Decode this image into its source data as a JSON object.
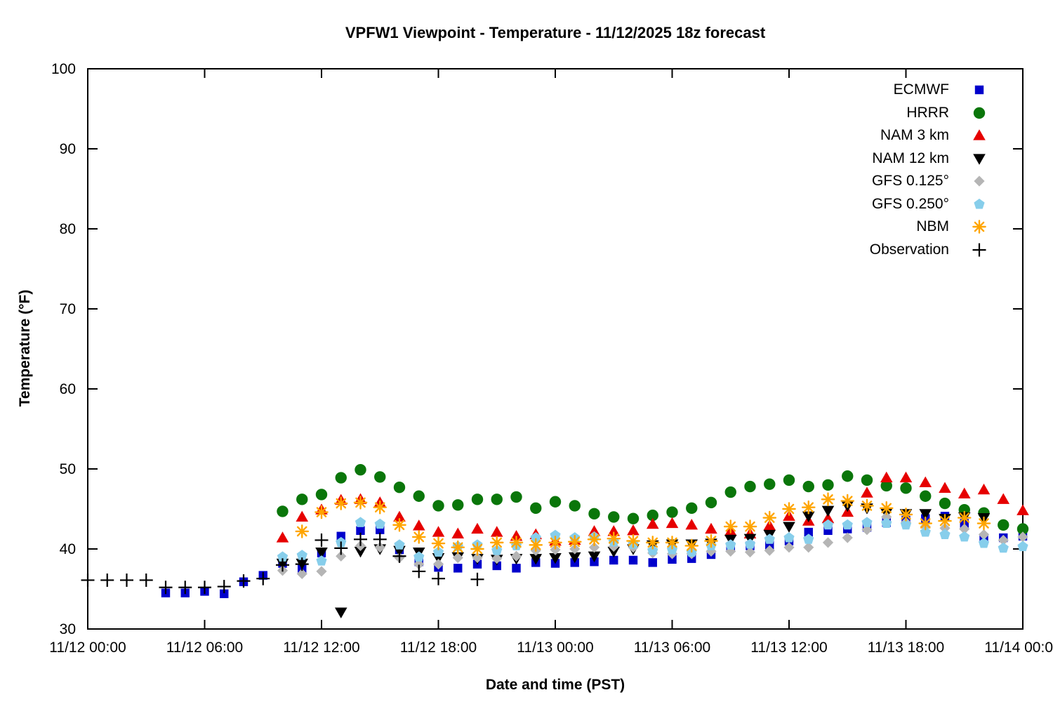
{
  "chart": {
    "title": "VPFW1 Viewpoint - Temperature - 11/12/2025 18z forecast",
    "x_label": "Date and time (PST)",
    "y_label": "Temperature (°F)"
  },
  "chart_data": {
    "type": "scatter",
    "title": "VPFW1 Viewpoint - Temperature - 11/12/2025 18z forecast",
    "xlabel": "Date and time (PST)",
    "ylabel": "Temperature (°F)",
    "x_unit": "hours since 2025-11-12 00:00 PST",
    "xlim_hours": [
      0,
      48
    ],
    "ylim": [
      30,
      100
    ],
    "grid": false,
    "legend_position": "top-right-inside",
    "x_ticks": [
      {
        "t": 0,
        "label": "11/12 00:00"
      },
      {
        "t": 6,
        "label": "11/12 06:00"
      },
      {
        "t": 12,
        "label": "11/12 12:00"
      },
      {
        "t": 18,
        "label": "11/12 18:00"
      },
      {
        "t": 24,
        "label": "11/13 00:00"
      },
      {
        "t": 30,
        "label": "11/13 06:00"
      },
      {
        "t": 36,
        "label": "11/13 12:00"
      },
      {
        "t": 42,
        "label": "11/13 18:00"
      },
      {
        "t": 48,
        "label": "11/14 00:00"
      }
    ],
    "y_ticks": [
      30,
      40,
      50,
      60,
      70,
      80,
      90,
      100
    ],
    "series": [
      {
        "name": "ECMWF",
        "marker": "square",
        "color": "#0000cc",
        "points": [
          [
            4,
            34.5
          ],
          [
            5,
            34.5
          ],
          [
            6,
            34.7
          ],
          [
            7,
            34.4
          ],
          [
            8,
            35.9
          ],
          [
            9,
            36.7
          ],
          [
            10,
            38.2
          ],
          [
            11,
            37.5
          ],
          [
            12,
            39.5
          ],
          [
            13,
            41.6
          ],
          [
            14,
            42.3
          ],
          [
            15,
            42.4
          ],
          [
            16,
            39.9
          ],
          [
            17,
            38.4
          ],
          [
            18,
            37.7
          ],
          [
            19,
            37.6
          ],
          [
            20,
            38.1
          ],
          [
            21,
            37.9
          ],
          [
            22,
            37.6
          ],
          [
            23,
            38.3
          ],
          [
            24,
            38.2
          ],
          [
            25,
            38.3
          ],
          [
            26,
            38.4
          ],
          [
            27,
            38.6
          ],
          [
            28,
            38.6
          ],
          [
            29,
            38.3
          ],
          [
            30,
            38.7
          ],
          [
            31,
            38.8
          ],
          [
            32,
            39.3
          ],
          [
            33,
            40.3
          ],
          [
            34,
            40.4
          ],
          [
            35,
            40.5
          ],
          [
            36,
            41.0
          ],
          [
            37,
            42.1
          ],
          [
            38,
            42.3
          ],
          [
            39,
            42.5
          ],
          [
            40,
            42.7
          ],
          [
            41,
            43.3
          ],
          [
            42,
            43.6
          ],
          [
            43,
            43.8
          ],
          [
            44,
            44.1
          ],
          [
            45,
            43.2
          ],
          [
            46,
            41.4
          ],
          [
            47,
            41.4
          ],
          [
            48,
            41.6
          ]
        ]
      },
      {
        "name": "HRRR",
        "marker": "circle",
        "color": "#0a760a",
        "points": [
          [
            10,
            44.7
          ],
          [
            11,
            46.2
          ],
          [
            12,
            46.8
          ],
          [
            13,
            48.9
          ],
          [
            14,
            49.9
          ],
          [
            15,
            49.0
          ],
          [
            16,
            47.7
          ],
          [
            17,
            46.6
          ],
          [
            18,
            45.4
          ],
          [
            19,
            45.5
          ],
          [
            20,
            46.2
          ],
          [
            21,
            46.2
          ],
          [
            22,
            46.5
          ],
          [
            23,
            45.1
          ],
          [
            24,
            45.9
          ],
          [
            25,
            45.4
          ],
          [
            26,
            44.4
          ],
          [
            27,
            44.0
          ],
          [
            28,
            43.8
          ],
          [
            29,
            44.2
          ],
          [
            30,
            44.6
          ],
          [
            31,
            45.1
          ],
          [
            32,
            45.8
          ],
          [
            33,
            47.1
          ],
          [
            34,
            47.8
          ],
          [
            35,
            48.1
          ],
          [
            36,
            48.6
          ],
          [
            37,
            47.8
          ],
          [
            38,
            48.0
          ],
          [
            39,
            49.1
          ],
          [
            40,
            48.6
          ],
          [
            41,
            47.9
          ],
          [
            42,
            47.6
          ],
          [
            43,
            46.6
          ],
          [
            44,
            45.7
          ],
          [
            45,
            44.9
          ],
          [
            46,
            44.5
          ],
          [
            47,
            43.0
          ],
          [
            48,
            42.5
          ]
        ]
      },
      {
        "name": "NAM 3 km",
        "marker": "triangle-up",
        "color": "#e60000",
        "points": [
          [
            10,
            41.4
          ],
          [
            11,
            44.0
          ],
          [
            12,
            44.9
          ],
          [
            13,
            46.1
          ],
          [
            14,
            46.2
          ],
          [
            15,
            45.8
          ],
          [
            16,
            44.0
          ],
          [
            17,
            42.9
          ],
          [
            18,
            42.1
          ],
          [
            19,
            41.9
          ],
          [
            20,
            42.5
          ],
          [
            21,
            42.1
          ],
          [
            22,
            41.6
          ],
          [
            23,
            41.8
          ],
          [
            24,
            41.0
          ],
          [
            25,
            41.1
          ],
          [
            26,
            42.2
          ],
          [
            27,
            42.2
          ],
          [
            28,
            42.3
          ],
          [
            29,
            43.1
          ],
          [
            30,
            43.2
          ],
          [
            31,
            43.0
          ],
          [
            32,
            42.5
          ],
          [
            33,
            42.2
          ],
          [
            34,
            41.9
          ],
          [
            35,
            42.9
          ],
          [
            36,
            44.1
          ],
          [
            37,
            43.5
          ],
          [
            38,
            43.8
          ],
          [
            39,
            44.6
          ],
          [
            40,
            47.0
          ],
          [
            41,
            48.9
          ],
          [
            42,
            48.9
          ],
          [
            43,
            48.3
          ],
          [
            44,
            47.6
          ],
          [
            45,
            46.9
          ],
          [
            46,
            47.4
          ],
          [
            47,
            46.2
          ],
          [
            48,
            44.8
          ]
        ]
      },
      {
        "name": "NAM 12 km",
        "marker": "triangle-down",
        "color": "#000000",
        "points": [
          [
            10,
            38.2
          ],
          [
            11,
            38.2
          ],
          [
            12,
            39.6
          ],
          [
            13,
            32.1
          ],
          [
            14,
            39.7
          ],
          [
            15,
            40.0
          ],
          [
            16,
            39.8
          ],
          [
            17,
            39.6
          ],
          [
            18,
            38.9
          ],
          [
            19,
            39.0
          ],
          [
            20,
            38.8
          ],
          [
            21,
            38.7
          ],
          [
            22,
            38.8
          ],
          [
            23,
            38.8
          ],
          [
            24,
            38.9
          ],
          [
            25,
            39.0
          ],
          [
            26,
            39.1
          ],
          [
            27,
            39.7
          ],
          [
            28,
            40.0
          ],
          [
            29,
            40.5
          ],
          [
            30,
            40.6
          ],
          [
            31,
            40.6
          ],
          [
            32,
            40.7
          ],
          [
            33,
            41.2
          ],
          [
            34,
            41.3
          ],
          [
            35,
            41.8
          ],
          [
            36,
            42.8
          ],
          [
            37,
            44.1
          ],
          [
            38,
            44.8
          ],
          [
            39,
            45.4
          ],
          [
            40,
            45.1
          ],
          [
            41,
            44.5
          ],
          [
            42,
            44.4
          ],
          [
            43,
            44.4
          ],
          [
            44,
            43.8
          ],
          [
            45,
            44.0
          ],
          [
            46,
            43.9
          ]
        ]
      },
      {
        "name": "GFS 0.125°",
        "marker": "diamond",
        "color": "#b5b5b5",
        "points": [
          [
            10,
            37.3
          ],
          [
            11,
            36.9
          ],
          [
            12,
            37.2
          ],
          [
            13,
            39.1
          ],
          [
            14,
            40.4
          ],
          [
            15,
            40.2
          ],
          [
            16,
            38.9
          ],
          [
            17,
            38.1
          ],
          [
            18,
            38.1
          ],
          [
            19,
            38.9
          ],
          [
            20,
            38.9
          ],
          [
            21,
            38.8
          ],
          [
            22,
            39.1
          ],
          [
            23,
            39.8
          ],
          [
            24,
            39.9
          ],
          [
            25,
            40.0
          ],
          [
            26,
            40.2
          ],
          [
            27,
            40.3
          ],
          [
            28,
            40.2
          ],
          [
            29,
            39.5
          ],
          [
            30,
            39.4
          ],
          [
            31,
            39.4
          ],
          [
            32,
            39.7
          ],
          [
            33,
            39.7
          ],
          [
            34,
            39.6
          ],
          [
            35,
            39.8
          ],
          [
            36,
            40.2
          ],
          [
            37,
            40.2
          ],
          [
            38,
            40.8
          ],
          [
            39,
            41.4
          ],
          [
            40,
            42.4
          ],
          [
            41,
            44.0
          ],
          [
            42,
            43.3
          ],
          [
            43,
            42.8
          ],
          [
            44,
            42.6
          ],
          [
            45,
            42.5
          ],
          [
            46,
            41.8
          ],
          [
            47,
            41.1
          ],
          [
            48,
            41.5
          ]
        ]
      },
      {
        "name": "GFS 0.250°",
        "marker": "pentagon",
        "color": "#87ceeb",
        "points": [
          [
            10,
            39.0
          ],
          [
            11,
            39.2
          ],
          [
            12,
            38.5
          ],
          [
            13,
            40.8
          ],
          [
            14,
            43.3
          ],
          [
            15,
            43.1
          ],
          [
            16,
            40.5
          ],
          [
            17,
            39.0
          ],
          [
            18,
            39.6
          ],
          [
            19,
            40.3
          ],
          [
            20,
            40.5
          ],
          [
            21,
            39.8
          ],
          [
            22,
            40.4
          ],
          [
            23,
            41.4
          ],
          [
            24,
            41.7
          ],
          [
            25,
            41.4
          ],
          [
            26,
            41.5
          ],
          [
            27,
            40.9
          ],
          [
            28,
            40.6
          ],
          [
            29,
            39.8
          ],
          [
            30,
            39.9
          ],
          [
            31,
            39.6
          ],
          [
            32,
            40.4
          ],
          [
            33,
            40.5
          ],
          [
            34,
            40.6
          ],
          [
            35,
            41.2
          ],
          [
            36,
            41.4
          ],
          [
            37,
            41.2
          ],
          [
            38,
            43.0
          ],
          [
            39,
            43.0
          ],
          [
            40,
            43.3
          ],
          [
            41,
            43.2
          ],
          [
            42,
            43.0
          ],
          [
            43,
            42.1
          ],
          [
            44,
            41.8
          ],
          [
            45,
            41.5
          ],
          [
            46,
            40.7
          ],
          [
            47,
            40.1
          ],
          [
            48,
            40.3
          ]
        ]
      },
      {
        "name": "NBM",
        "marker": "asterisk",
        "color": "#ffa500",
        "points": [
          [
            11,
            42.2
          ],
          [
            12,
            44.6
          ],
          [
            13,
            45.7
          ],
          [
            14,
            45.8
          ],
          [
            15,
            45.2
          ],
          [
            16,
            43.0
          ],
          [
            17,
            41.5
          ],
          [
            18,
            40.7
          ],
          [
            19,
            40.2
          ],
          [
            20,
            40.0
          ],
          [
            21,
            40.8
          ],
          [
            22,
            40.8
          ],
          [
            23,
            40.5
          ],
          [
            24,
            40.8
          ],
          [
            25,
            40.9
          ],
          [
            26,
            41.2
          ],
          [
            27,
            41.3
          ],
          [
            28,
            41.0
          ],
          [
            29,
            40.8
          ],
          [
            30,
            40.8
          ],
          [
            31,
            40.4
          ],
          [
            32,
            41.0
          ],
          [
            33,
            42.8
          ],
          [
            34,
            42.8
          ],
          [
            35,
            43.9
          ],
          [
            36,
            45.0
          ],
          [
            37,
            45.2
          ],
          [
            38,
            46.2
          ],
          [
            39,
            46.0
          ],
          [
            40,
            45.4
          ],
          [
            41,
            45.1
          ],
          [
            42,
            44.3
          ],
          [
            43,
            43.2
          ],
          [
            44,
            43.5
          ],
          [
            45,
            43.9
          ],
          [
            46,
            43.2
          ]
        ]
      },
      {
        "name": "Observation",
        "marker": "plus",
        "color": "#000000",
        "points": [
          [
            0,
            36.1
          ],
          [
            1,
            36.1
          ],
          [
            2,
            36.1
          ],
          [
            3,
            36.1
          ],
          [
            4,
            35.2
          ],
          [
            5,
            35.2
          ],
          [
            6,
            35.2
          ],
          [
            7,
            35.3
          ],
          [
            8,
            36.0
          ],
          [
            9,
            36.3
          ],
          [
            10,
            38.0
          ],
          [
            11,
            38.1
          ],
          [
            12,
            41.1
          ],
          [
            13,
            40.1
          ],
          [
            14,
            41.2
          ],
          [
            15,
            41.2
          ],
          [
            16,
            39.1
          ],
          [
            17,
            37.2
          ],
          [
            18,
            36.3
          ],
          [
            20,
            36.2
          ]
        ]
      }
    ]
  }
}
